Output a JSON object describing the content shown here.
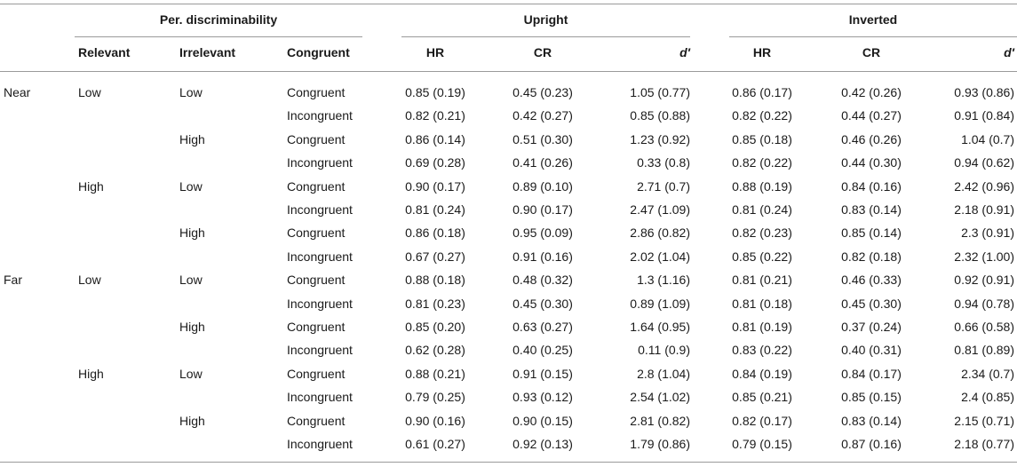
{
  "table": {
    "header": {
      "per_discriminability": "Per. discriminability",
      "upright": "Upright",
      "inverted": "Inverted",
      "relevant": "Relevant",
      "irrelevant": "Irrelevant",
      "congruent": "Congruent",
      "upright_hr": "HR",
      "upright_cr": "CR",
      "upright_d": "d′",
      "inverted_hr": "HR",
      "inverted_cr": "CR",
      "inverted_d": "d′"
    },
    "rows": [
      {
        "distance": "Near",
        "relevant": "Low",
        "irrelevant": "Low",
        "congruent": "Congruent",
        "u_hr": "0.85 (0.19)",
        "u_cr": "0.45 (0.23)",
        "u_d": "1.05 (0.77)",
        "i_hr": "0.86 (0.17)",
        "i_cr": "0.42 (0.26)",
        "i_d": "0.93 (0.86)"
      },
      {
        "distance": "",
        "relevant": "",
        "irrelevant": "",
        "congruent": "Incongruent",
        "u_hr": "0.82 (0.21)",
        "u_cr": "0.42 (0.27)",
        "u_d": "0.85 (0.88)",
        "i_hr": "0.82 (0.22)",
        "i_cr": "0.44 (0.27)",
        "i_d": "0.91 (0.84)"
      },
      {
        "distance": "",
        "relevant": "",
        "irrelevant": "High",
        "congruent": "Congruent",
        "u_hr": "0.86 (0.14)",
        "u_cr": "0.51 (0.30)",
        "u_d": "1.23 (0.92)",
        "i_hr": "0.85 (0.18)",
        "i_cr": "0.46 (0.26)",
        "i_d": "1.04 (0.7)"
      },
      {
        "distance": "",
        "relevant": "",
        "irrelevant": "",
        "congruent": "Incongruent",
        "u_hr": "0.69 (0.28)",
        "u_cr": "0.41 (0.26)",
        "u_d": "0.33 (0.8)",
        "i_hr": "0.82 (0.22)",
        "i_cr": "0.44 (0.30)",
        "i_d": "0.94 (0.62)"
      },
      {
        "distance": "",
        "relevant": "High",
        "irrelevant": "Low",
        "congruent": "Congruent",
        "u_hr": "0.90 (0.17)",
        "u_cr": "0.89 (0.10)",
        "u_d": "2.71 (0.7)",
        "i_hr": "0.88 (0.19)",
        "i_cr": "0.84 (0.16)",
        "i_d": "2.42 (0.96)"
      },
      {
        "distance": "",
        "relevant": "",
        "irrelevant": "",
        "congruent": "Incongruent",
        "u_hr": "0.81 (0.24)",
        "u_cr": "0.90 (0.17)",
        "u_d": "2.47 (1.09)",
        "i_hr": "0.81 (0.24)",
        "i_cr": "0.83 (0.14)",
        "i_d": "2.18 (0.91)"
      },
      {
        "distance": "",
        "relevant": "",
        "irrelevant": "High",
        "congruent": "Congruent",
        "u_hr": "0.86 (0.18)",
        "u_cr": "0.95 (0.09)",
        "u_d": "2.86 (0.82)",
        "i_hr": "0.82 (0.23)",
        "i_cr": "0.85 (0.14)",
        "i_d": "2.3 (0.91)"
      },
      {
        "distance": "",
        "relevant": "",
        "irrelevant": "",
        "congruent": "Incongruent",
        "u_hr": "0.67 (0.27)",
        "u_cr": "0.91 (0.16)",
        "u_d": "2.02 (1.04)",
        "i_hr": "0.85 (0.22)",
        "i_cr": "0.82 (0.18)",
        "i_d": "2.32 (1.00)"
      },
      {
        "distance": "Far",
        "relevant": "Low",
        "irrelevant": "Low",
        "congruent": "Congruent",
        "u_hr": "0.88 (0.18)",
        "u_cr": "0.48 (0.32)",
        "u_d": "1.3 (1.16)",
        "i_hr": "0.81 (0.21)",
        "i_cr": "0.46 (0.33)",
        "i_d": "0.92 (0.91)"
      },
      {
        "distance": "",
        "relevant": "",
        "irrelevant": "",
        "congruent": "Incongruent",
        "u_hr": "0.81 (0.23)",
        "u_cr": "0.45 (0.30)",
        "u_d": "0.89 (1.09)",
        "i_hr": "0.81 (0.18)",
        "i_cr": "0.45 (0.30)",
        "i_d": "0.94 (0.78)"
      },
      {
        "distance": "",
        "relevant": "",
        "irrelevant": "High",
        "congruent": "Congruent",
        "u_hr": "0.85 (0.20)",
        "u_cr": "0.63 (0.27)",
        "u_d": "1.64 (0.95)",
        "i_hr": "0.81 (0.19)",
        "i_cr": "0.37 (0.24)",
        "i_d": "0.66 (0.58)"
      },
      {
        "distance": "",
        "relevant": "",
        "irrelevant": "",
        "congruent": "Incongruent",
        "u_hr": "0.62 (0.28)",
        "u_cr": "0.40 (0.25)",
        "u_d": "0.11 (0.9)",
        "i_hr": "0.83 (0.22)",
        "i_cr": "0.40 (0.31)",
        "i_d": "0.81 (0.89)"
      },
      {
        "distance": "",
        "relevant": "High",
        "irrelevant": "Low",
        "congruent": "Congruent",
        "u_hr": "0.88 (0.21)",
        "u_cr": "0.91 (0.15)",
        "u_d": "2.8 (1.04)",
        "i_hr": "0.84 (0.19)",
        "i_cr": "0.84 (0.17)",
        "i_d": "2.34 (0.7)"
      },
      {
        "distance": "",
        "relevant": "",
        "irrelevant": "",
        "congruent": "Incongruent",
        "u_hr": "0.79 (0.25)",
        "u_cr": "0.93 (0.12)",
        "u_d": "2.54 (1.02)",
        "i_hr": "0.85 (0.21)",
        "i_cr": "0.85 (0.15)",
        "i_d": "2.4 (0.85)"
      },
      {
        "distance": "",
        "relevant": "",
        "irrelevant": "High",
        "congruent": "Congruent",
        "u_hr": "0.90 (0.16)",
        "u_cr": "0.90 (0.15)",
        "u_d": "2.81 (0.82)",
        "i_hr": "0.82 (0.17)",
        "i_cr": "0.83 (0.14)",
        "i_d": "2.15 (0.71)"
      },
      {
        "distance": "",
        "relevant": "",
        "irrelevant": "",
        "congruent": "Incongruent",
        "u_hr": "0.61 (0.27)",
        "u_cr": "0.92 (0.13)",
        "u_d": "1.79 (0.86)",
        "i_hr": "0.79 (0.15)",
        "i_cr": "0.87 (0.16)",
        "i_d": "2.18 (0.77)"
      }
    ]
  }
}
